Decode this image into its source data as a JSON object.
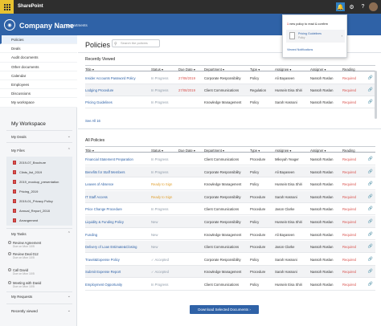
{
  "topbar": {
    "app_name": "SharePoint"
  },
  "brandbar": {
    "company": "Company Name",
    "nav_label": "Departments",
    "logo_mark": "◉"
  },
  "sidebar": {
    "nav": [
      "Policies",
      "Deals",
      "Audit documents",
      "Other documents",
      "Calendar",
      "Employees",
      "Discussions",
      "My workspace"
    ],
    "workspace_title": "My Workspace",
    "my_deals": "My Deals",
    "my_files": "My Files",
    "files": [
      "2019-07_Brochure",
      "Clints_list_2019",
      "2019_mockup_presentation",
      "Pricing_2019",
      "2019-01_Privacy Policy",
      "Annual_Report_2018",
      "Arrangement"
    ],
    "my_tasks": "My Tasks",
    "tasks": [
      {
        "title": "Review Agreement",
        "sub": "Due on Mon 10/5"
      },
      {
        "title": "Review Deal 012",
        "sub": "Due on Mon 10/5"
      },
      {
        "title": "Call David",
        "sub": "Due on Mon 10/5"
      },
      {
        "title": "Meeting with David",
        "sub": "Due on Mon 10/5"
      }
    ],
    "my_requests": "My Requests",
    "recently_viewed": "Recently viewed"
  },
  "main": {
    "title": "Policies",
    "search_placeholder": "Search the policies",
    "recent_title": "Recently Viewed",
    "all_title": "All Policies",
    "see_all": "See All 16",
    "columns": [
      "Title",
      "Status",
      "Due Date",
      "Department",
      "Type",
      "Assignee",
      "Assigner",
      "Reading"
    ],
    "recent_rows": [
      {
        "title": "Insider Accounts Password Policy",
        "status": "In Progress",
        "due": "27/08/2019",
        "dept": "Corporate Responsibility",
        "type": "Policy",
        "assignee": "Ali Bayaseen",
        "assigner": "Nassoh Raslan",
        "reading": "Required"
      },
      {
        "title": "Lodging Procedure",
        "status": "In Progress",
        "due": "27/08/2019",
        "dept": "Client Communications",
        "type": "Regulation",
        "assignee": "Hussein Eisa Shiri",
        "assigner": "Nassoh Raslan",
        "reading": "Required"
      },
      {
        "title": "Pricing Guidelines",
        "status": "In Progress",
        "due": "",
        "dept": "Knowledge Management",
        "type": "Policy",
        "assignee": "Sarah Hasnani",
        "assigner": "Nassoh Raslan",
        "reading": "Required"
      }
    ],
    "all_rows": [
      {
        "title": "Financial Statement Preparation",
        "status": "In Progress",
        "due": "",
        "dept": "Client Communications",
        "type": "Procedure",
        "assignee": "Mikeyah Yeager",
        "assigner": "Nassoh Raslan",
        "reading": "Required"
      },
      {
        "title": "Benefits for Staff Members",
        "status": "In Progress",
        "due": "",
        "dept": "Corporate Responsibility",
        "type": "Policy",
        "assignee": "Ali Bayaseen",
        "assigner": "Nassoh Raslan",
        "reading": "Required"
      },
      {
        "title": "Leaves of Absence",
        "status": "Ready to Sign",
        "due": "",
        "dept": "Knowledge Management",
        "type": "Policy",
        "assignee": "Hussein Eisa Shiri",
        "assigner": "Nassoh Raslan",
        "reading": "Required"
      },
      {
        "title": "IT Staff Access",
        "status": "Ready to Sign",
        "due": "",
        "dept": "Corporate Responsibility",
        "type": "Procedure",
        "assignee": "Sarah Hasnani",
        "assigner": "Nassoh Raslan",
        "reading": "Required"
      },
      {
        "title": "Price Change Procedure",
        "status": "In Progress",
        "due": "",
        "dept": "Client Communications",
        "type": "Procedure",
        "assignee": "Jason Clarke",
        "assigner": "Nassoh Raslan",
        "reading": "Required"
      },
      {
        "title": "Liquidity & Funding Policy",
        "status": "New",
        "due": "",
        "dept": "Corporate Responsibility",
        "type": "Policy",
        "assignee": "Hussein Eisa Shiri",
        "assigner": "Nassoh Raslan",
        "reading": "Required"
      },
      {
        "title": "Funding",
        "status": "New",
        "due": "",
        "dept": "Knowledge Management",
        "type": "Procedure",
        "assignee": "Ali Bayaseen",
        "assigner": "Nassoh Raslan",
        "reading": "Required"
      },
      {
        "title": "Delivery of Loan Estimate&Closing",
        "status": "New",
        "due": "",
        "dept": "Client Communications",
        "type": "Procedure",
        "assignee": "Jason Clarke",
        "assigner": "Nassoh Raslan",
        "reading": "Required"
      },
      {
        "title": "Travel&Expense Policy",
        "status": "Accepted",
        "due": "",
        "dept": "Corporate Responsibility",
        "type": "Policy",
        "assignee": "Sarah Hasnani",
        "assigner": "Nassoh Raslan",
        "reading": "Required"
      },
      {
        "title": "Submit Expense Report",
        "status": "Accepted",
        "due": "",
        "dept": "Knowledge Management",
        "type": "Procedure",
        "assignee": "Sarah Hasnani",
        "assigner": "Nassoh Raslan",
        "reading": "Required"
      },
      {
        "title": "Employment Opportunity",
        "status": "In Progress",
        "due": "",
        "dept": "Client Communications",
        "type": "Policy",
        "assignee": "Hussein Eisa Shiri",
        "assigner": "Nassoh Raslan",
        "reading": "Required"
      }
    ],
    "download_button": "Download Selected Documents"
  },
  "notification": {
    "header_count": "1",
    "header_text": "new policy to read & confirm",
    "item_name": "Pricing Guidelines",
    "item_sub": "Policy",
    "link": "Viewed Notifications"
  },
  "colors": {
    "brand": "#2f62a7",
    "accent": "#e8c230",
    "required": "#d9534f",
    "ready": "#e0a030"
  }
}
